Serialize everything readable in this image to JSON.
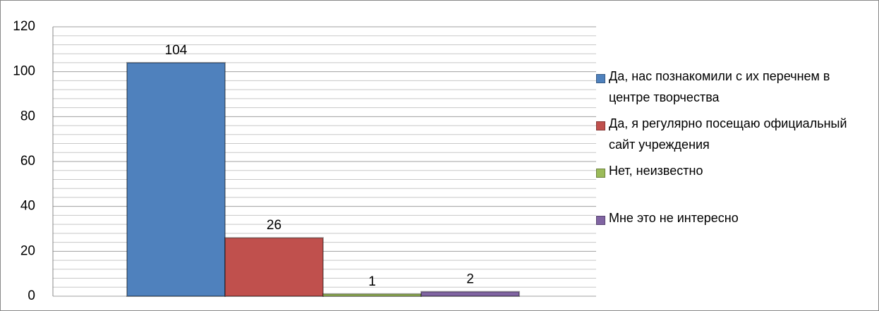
{
  "chart_data": {
    "type": "bar",
    "categories": [
      null
    ],
    "series": [
      {
        "name": "Да, нас познакомили с их перечнем в центре творчества",
        "color": "#4f81bd",
        "values": [
          104
        ]
      },
      {
        "name": "Да, я регулярно посещаю официальный сайт учреждения",
        "color": "#c0504d",
        "values": [
          26
        ]
      },
      {
        "name": "Нет, неизвестно",
        "color": "#9bbb59",
        "values": [
          1
        ]
      },
      {
        "name": "Мне это не интересно",
        "color": "#8064a2",
        "values": [
          2
        ]
      }
    ],
    "ylim": [
      0,
      120
    ],
    "yticks": [
      0,
      20,
      40,
      60,
      80,
      100,
      120
    ],
    "grid": true,
    "legend": "right"
  }
}
